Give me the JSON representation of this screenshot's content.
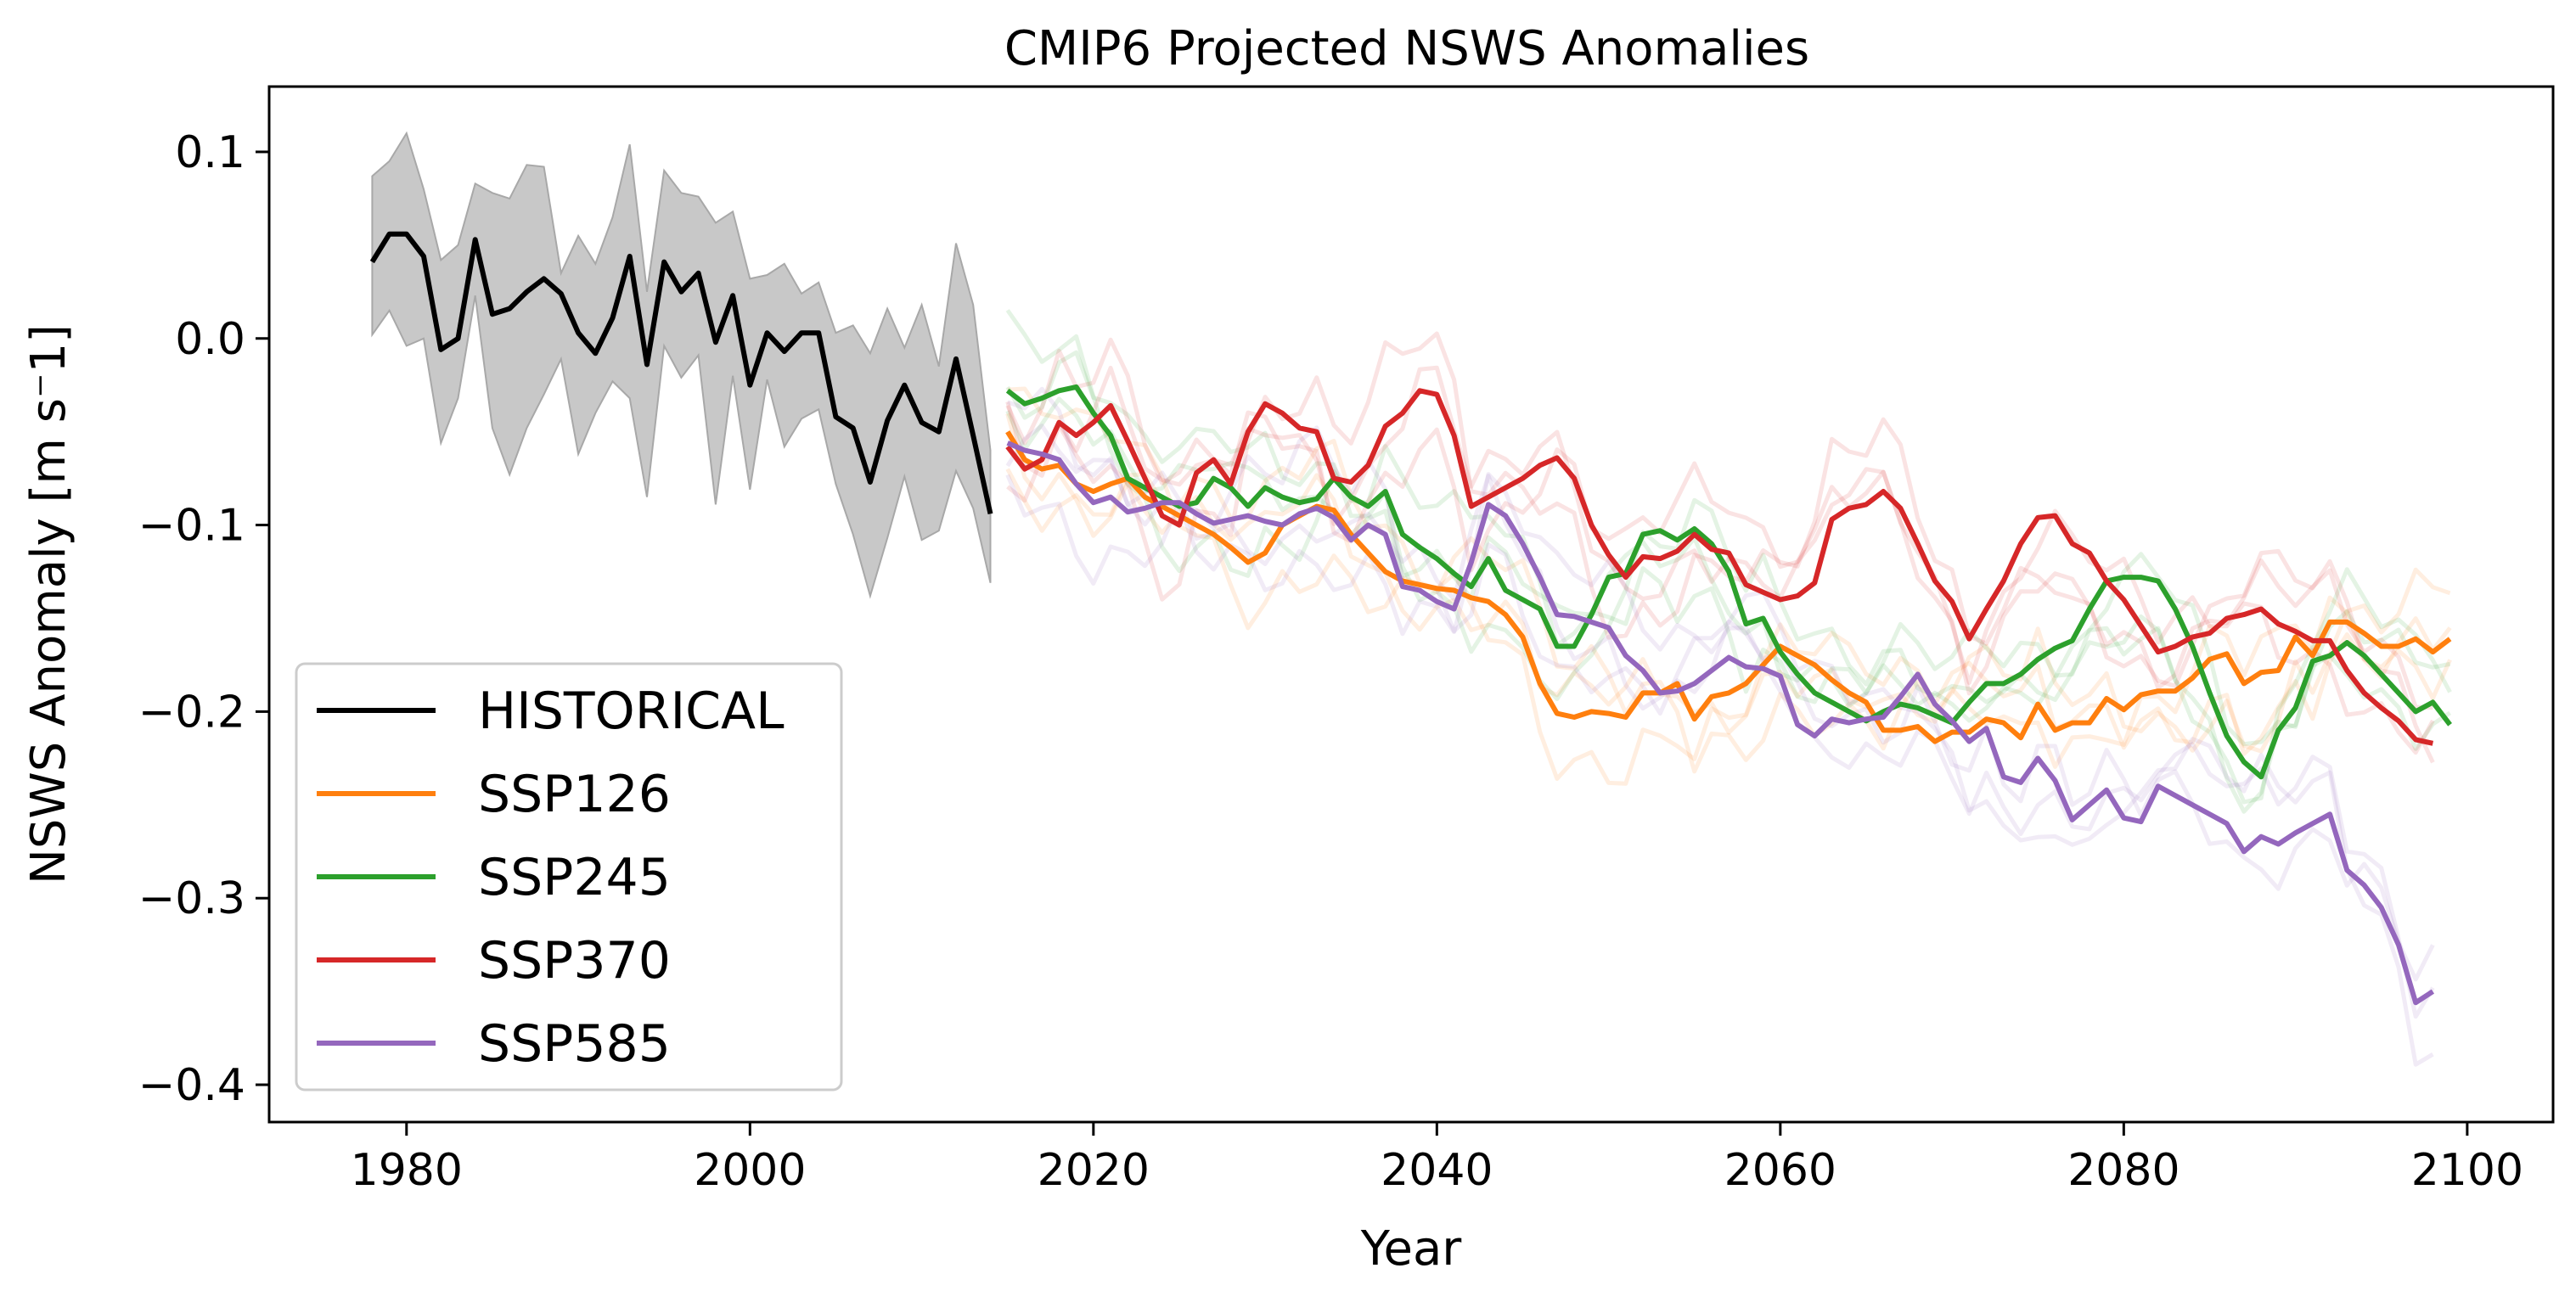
{
  "chart_data": {
    "type": "line",
    "title": "CMIP6 Projected NSWS Anomalies",
    "xlabel": "Year",
    "ylabel": "NSWS Anomaly [m s⁻1]",
    "xlim": [
      1972,
      2105
    ],
    "ylim": [
      -0.42,
      0.135
    ],
    "xticks": [
      1980,
      2000,
      2020,
      2040,
      2060,
      2080,
      2100
    ],
    "yticks": [
      0.1,
      0.0,
      -0.1,
      -0.2,
      -0.3,
      -0.4
    ],
    "ytick_labels": [
      "0.1",
      "0.0",
      "−0.1",
      "−0.2",
      "−0.3",
      "−0.4"
    ],
    "grid": false,
    "legend_position": "lower-left",
    "historical": {
      "name": "HISTORICAL",
      "color": "#000000",
      "x_start": 1978,
      "values": [
        0.041,
        0.056,
        0.056,
        0.044,
        -0.006,
        0.0,
        0.053,
        0.013,
        0.016,
        0.025,
        0.032,
        0.024,
        0.003,
        -0.008,
        0.011,
        0.044,
        -0.014,
        0.041,
        0.025,
        0.035,
        -0.002,
        0.023,
        -0.025,
        0.003,
        -0.007,
        0.003,
        0.003,
        -0.042,
        -0.048,
        -0.077,
        -0.044,
        -0.025,
        -0.045,
        -0.05,
        -0.011,
        -0.052,
        -0.094
      ],
      "band_upper": [
        0.087,
        0.095,
        0.11,
        0.08,
        0.042,
        0.05,
        0.083,
        0.078,
        0.075,
        0.093,
        0.092,
        0.035,
        0.055,
        0.04,
        0.065,
        0.104,
        0.025,
        0.09,
        0.078,
        0.076,
        0.062,
        0.068,
        0.032,
        0.034,
        0.04,
        0.024,
        0.03,
        0.003,
        0.007,
        -0.008,
        0.016,
        -0.005,
        0.018,
        -0.015,
        0.051,
        0.018,
        -0.06
      ],
      "band_lower": [
        0.002,
        0.015,
        -0.004,
        0.0,
        -0.056,
        -0.032,
        0.023,
        -0.048,
        -0.073,
        -0.048,
        -0.03,
        -0.011,
        -0.062,
        -0.04,
        -0.023,
        -0.032,
        -0.085,
        -0.004,
        -0.021,
        -0.009,
        -0.089,
        -0.02,
        -0.081,
        -0.022,
        -0.058,
        -0.043,
        -0.038,
        -0.078,
        -0.105,
        -0.138,
        -0.107,
        -0.074,
        -0.108,
        -0.103,
        -0.071,
        -0.091,
        -0.131
      ],
      "band_color": "#c8c8c8"
    },
    "projection_x_start": 2015,
    "series": [
      {
        "name": "SSP126",
        "color": "#ff7f0e",
        "values": [
          -0.05,
          -0.065,
          -0.07,
          -0.068,
          -0.078,
          -0.082,
          -0.078,
          -0.075,
          -0.085,
          -0.09,
          -0.095,
          -0.1,
          -0.105,
          -0.112,
          -0.12,
          -0.115,
          -0.1,
          -0.095,
          -0.09,
          -0.092,
          -0.105,
          -0.115,
          -0.125,
          -0.13,
          -0.132,
          -0.134,
          -0.135,
          -0.139,
          -0.141,
          -0.148,
          -0.16,
          -0.185,
          -0.201,
          -0.203,
          -0.2,
          -0.201,
          -0.203,
          -0.19,
          -0.19,
          -0.185,
          -0.204,
          -0.192,
          -0.19,
          -0.185,
          -0.175,
          -0.165,
          -0.17,
          -0.175,
          -0.183,
          -0.19,
          -0.195,
          -0.21,
          -0.21,
          -0.208,
          -0.216,
          -0.211,
          -0.211,
          -0.204,
          -0.206,
          -0.214,
          -0.196,
          -0.21,
          -0.206,
          -0.206,
          -0.193,
          -0.199,
          -0.191,
          -0.189,
          -0.189,
          -0.182,
          -0.172,
          -0.169,
          -0.185,
          -0.179,
          -0.178,
          -0.16,
          -0.17,
          -0.152,
          -0.152,
          -0.158,
          -0.165,
          -0.165,
          -0.161,
          -0.168,
          -0.161
        ]
      },
      {
        "name": "SSP245",
        "color": "#2ca02c",
        "values": [
          -0.028,
          -0.035,
          -0.032,
          -0.028,
          -0.026,
          -0.04,
          -0.052,
          -0.075,
          -0.08,
          -0.085,
          -0.09,
          -0.088,
          -0.075,
          -0.08,
          -0.09,
          -0.08,
          -0.085,
          -0.088,
          -0.086,
          -0.075,
          -0.085,
          -0.09,
          -0.082,
          -0.105,
          -0.112,
          -0.118,
          -0.126,
          -0.133,
          -0.118,
          -0.135,
          -0.14,
          -0.145,
          -0.165,
          -0.165,
          -0.148,
          -0.128,
          -0.126,
          -0.105,
          -0.103,
          -0.108,
          -0.102,
          -0.11,
          -0.125,
          -0.153,
          -0.15,
          -0.168,
          -0.18,
          -0.19,
          -0.195,
          -0.2,
          -0.205,
          -0.2,
          -0.196,
          -0.198,
          -0.202,
          -0.206,
          -0.195,
          -0.185,
          -0.185,
          -0.18,
          -0.172,
          -0.166,
          -0.162,
          -0.145,
          -0.13,
          -0.128,
          -0.128,
          -0.13,
          -0.145,
          -0.165,
          -0.19,
          -0.213,
          -0.227,
          -0.235,
          -0.21,
          -0.198,
          -0.173,
          -0.17,
          -0.163,
          -0.17,
          -0.18,
          -0.19,
          -0.2,
          -0.195,
          -0.207
        ]
      },
      {
        "name": "SSP370",
        "color": "#d62728",
        "values": [
          -0.058,
          -0.07,
          -0.065,
          -0.045,
          -0.052,
          -0.045,
          -0.036,
          -0.055,
          -0.075,
          -0.095,
          -0.1,
          -0.072,
          -0.065,
          -0.078,
          -0.05,
          -0.035,
          -0.04,
          -0.048,
          -0.05,
          -0.075,
          -0.077,
          -0.068,
          -0.047,
          -0.04,
          -0.028,
          -0.03,
          -0.052,
          -0.09,
          -0.085,
          -0.08,
          -0.075,
          -0.068,
          -0.064,
          -0.075,
          -0.1,
          -0.116,
          -0.128,
          -0.117,
          -0.118,
          -0.114,
          -0.105,
          -0.113,
          -0.115,
          -0.132,
          -0.136,
          -0.14,
          -0.138,
          -0.131,
          -0.097,
          -0.091,
          -0.089,
          -0.082,
          -0.091,
          -0.11,
          -0.13,
          -0.141,
          -0.161,
          -0.145,
          -0.13,
          -0.11,
          -0.096,
          -0.095,
          -0.11,
          -0.115,
          -0.13,
          -0.14,
          -0.154,
          -0.168,
          -0.165,
          -0.16,
          -0.158,
          -0.15,
          -0.148,
          -0.145,
          -0.153,
          -0.157,
          -0.162,
          -0.162,
          -0.178,
          -0.19,
          -0.198,
          -0.205,
          -0.215,
          -0.217
        ]
      },
      {
        "name": "SSP585",
        "color": "#9467bd",
        "values": [
          -0.056,
          -0.06,
          -0.062,
          -0.065,
          -0.078,
          -0.088,
          -0.085,
          -0.093,
          -0.091,
          -0.088,
          -0.088,
          -0.094,
          -0.099,
          -0.097,
          -0.095,
          -0.098,
          -0.1,
          -0.094,
          -0.091,
          -0.096,
          -0.108,
          -0.1,
          -0.105,
          -0.133,
          -0.135,
          -0.141,
          -0.145,
          -0.12,
          -0.089,
          -0.095,
          -0.11,
          -0.128,
          -0.148,
          -0.149,
          -0.152,
          -0.155,
          -0.17,
          -0.178,
          -0.19,
          -0.189,
          -0.185,
          -0.178,
          -0.171,
          -0.176,
          -0.177,
          -0.181,
          -0.207,
          -0.213,
          -0.204,
          -0.206,
          -0.204,
          -0.203,
          -0.192,
          -0.18,
          -0.196,
          -0.205,
          -0.216,
          -0.209,
          -0.235,
          -0.238,
          -0.225,
          -0.237,
          -0.258,
          -0.25,
          -0.242,
          -0.257,
          -0.259,
          -0.24,
          -0.245,
          -0.25,
          -0.255,
          -0.26,
          -0.275,
          -0.267,
          -0.271,
          -0.265,
          -0.26,
          -0.255,
          -0.285,
          -0.293,
          -0.305,
          -0.325,
          -0.356,
          -0.35
        ]
      }
    ]
  }
}
